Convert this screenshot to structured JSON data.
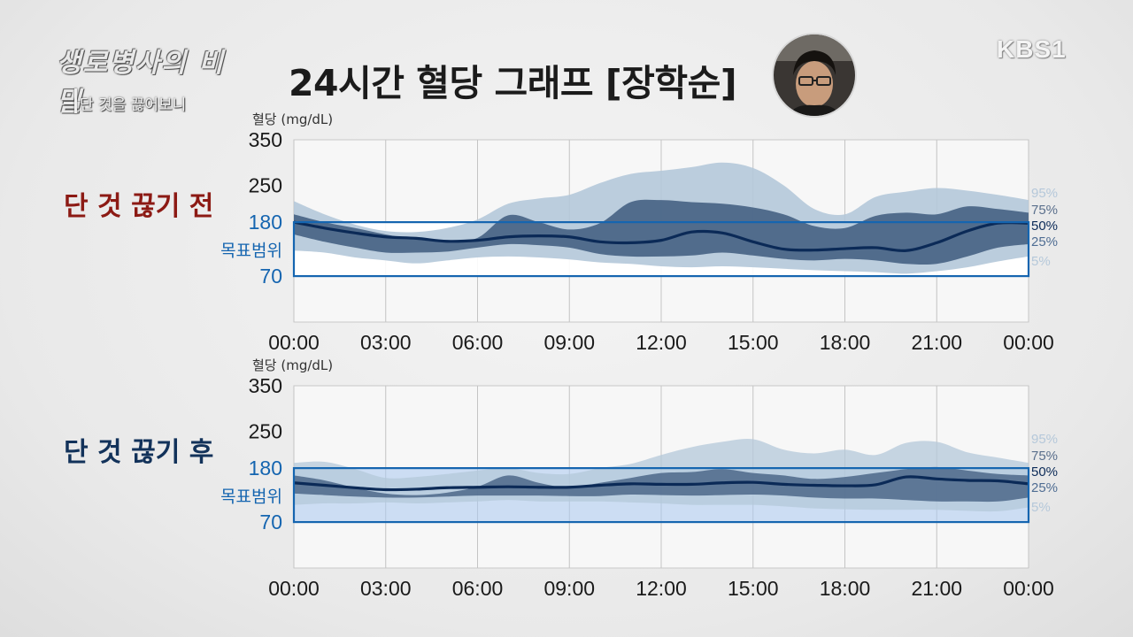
{
  "overlay": {
    "program_title": "생로병사의 비밀",
    "episode_subtitle": "단 것을 끊어보니",
    "channel_logo": "KBS1"
  },
  "page": {
    "title": "24시간 혈당 그래프 [장학순]",
    "avatar": "person-photo"
  },
  "colors": {
    "band_5_95": "#b4c8d9",
    "band_25_75": "#3e5a7e",
    "median": "#0b2a57",
    "target_box": "#1565b0",
    "before_label": "#8c1a14",
    "after_label": "#12325a",
    "target_label": "#1565b0"
  },
  "chart_data": [
    {
      "type": "area",
      "title": "단 것 끊기 전",
      "ylabel": "혈당 (mg/dL)",
      "y_ticks": [
        70,
        180,
        250,
        350
      ],
      "y_tick_labels": [
        "70",
        "180",
        "250",
        "350"
      ],
      "x_ticks": [
        "00:00",
        "03:00",
        "06:00",
        "09:00",
        "12:00",
        "15:00",
        "18:00",
        "21:00",
        "00:00"
      ],
      "target_range": {
        "label": "목표범위",
        "low": 70,
        "high": 180
      },
      "percentile_labels": [
        "95%",
        "75%",
        "50%",
        "25%",
        "5%"
      ],
      "x_hours": [
        0,
        1,
        2,
        3,
        4,
        5,
        6,
        7,
        8,
        9,
        10,
        11,
        12,
        13,
        14,
        15,
        16,
        17,
        18,
        19,
        20,
        21,
        22,
        23,
        24
      ],
      "series": [
        {
          "name": "95%",
          "values": [
            220,
            195,
            175,
            162,
            160,
            168,
            185,
            215,
            225,
            232,
            255,
            275,
            282,
            290,
            300,
            288,
            250,
            205,
            195,
            228,
            238,
            245,
            240,
            232,
            222
          ]
        },
        {
          "name": "75%",
          "values": [
            195,
            180,
            168,
            155,
            145,
            140,
            148,
            193,
            180,
            165,
            178,
            218,
            222,
            218,
            215,
            208,
            195,
            172,
            168,
            192,
            198,
            195,
            210,
            205,
            198
          ]
        },
        {
          "name": "50%",
          "values": [
            180,
            168,
            158,
            150,
            147,
            141,
            143,
            150,
            152,
            150,
            140,
            138,
            143,
            160,
            158,
            140,
            125,
            123,
            126,
            128,
            122,
            138,
            162,
            178,
            178
          ]
        },
        {
          "name": "25%",
          "values": [
            155,
            140,
            128,
            118,
            118,
            120,
            128,
            135,
            133,
            128,
            115,
            110,
            110,
            112,
            118,
            112,
            105,
            102,
            105,
            102,
            95,
            95,
            110,
            128,
            135
          ]
        },
        {
          "name": "5%",
          "values": [
            122,
            118,
            108,
            102,
            96,
            102,
            108,
            110,
            108,
            104,
            98,
            95,
            90,
            88,
            90,
            88,
            85,
            82,
            80,
            78,
            75,
            80,
            88,
            100,
            110
          ]
        }
      ]
    },
    {
      "type": "area",
      "title": "단 것 끊기 후",
      "ylabel": "혈당 (mg/dL)",
      "y_ticks": [
        70,
        180,
        250,
        350
      ],
      "y_tick_labels": [
        "70",
        "180",
        "250",
        "350"
      ],
      "x_ticks": [
        "00:00",
        "03:00",
        "06:00",
        "09:00",
        "12:00",
        "15:00",
        "18:00",
        "21:00",
        "00:00"
      ],
      "target_range": {
        "label": "목표범위",
        "low": 70,
        "high": 180
      },
      "percentile_labels": [
        "95%",
        "75%",
        "50%",
        "25%",
        "5%"
      ],
      "x_hours": [
        0,
        1,
        2,
        3,
        4,
        5,
        6,
        7,
        8,
        9,
        10,
        11,
        12,
        13,
        14,
        15,
        16,
        17,
        18,
        19,
        20,
        21,
        22,
        23,
        24
      ],
      "series": [
        {
          "name": "95%",
          "values": [
            190,
            192,
            178,
            160,
            162,
            168,
            175,
            180,
            170,
            168,
            180,
            188,
            205,
            220,
            230,
            235,
            215,
            208,
            215,
            205,
            228,
            230,
            210,
            200,
            190
          ]
        },
        {
          "name": "75%",
          "values": [
            165,
            155,
            140,
            128,
            125,
            130,
            142,
            165,
            150,
            140,
            150,
            160,
            170,
            172,
            178,
            170,
            165,
            158,
            162,
            170,
            178,
            182,
            175,
            168,
            165
          ]
        },
        {
          "name": "50%",
          "values": [
            150,
            145,
            140,
            136,
            137,
            140,
            141,
            142,
            141,
            141,
            145,
            148,
            147,
            147,
            150,
            151,
            147,
            145,
            144,
            146,
            162,
            158,
            155,
            154,
            148
          ]
        },
        {
          "name": "25%",
          "values": [
            128,
            125,
            122,
            120,
            120,
            122,
            124,
            124,
            124,
            123,
            123,
            126,
            125,
            124,
            125,
            126,
            124,
            120,
            118,
            118,
            115,
            112,
            112,
            112,
            120
          ]
        },
        {
          "name": "5%",
          "values": [
            105,
            108,
            108,
            110,
            108,
            110,
            112,
            115,
            112,
            112,
            112,
            110,
            108,
            105,
            105,
            105,
            102,
            98,
            96,
            95,
            95,
            95,
            93,
            92,
            100
          ]
        }
      ]
    }
  ]
}
